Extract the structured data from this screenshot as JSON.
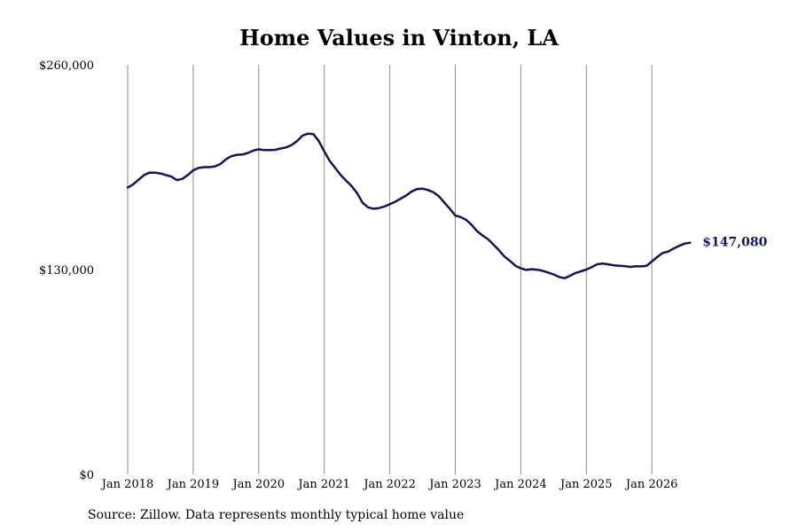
{
  "chart_data": {
    "type": "line",
    "title": "Home Values in Vinton, LA",
    "xlabel": "",
    "ylabel": "",
    "ylim": [
      0,
      260000
    ],
    "y_ticks": [
      {
        "value": 0,
        "label": "$0"
      },
      {
        "value": 130000,
        "label": "$130,000"
      },
      {
        "value": 260000,
        "label": "$260,000"
      }
    ],
    "x_ticks": [
      {
        "value": 2018,
        "label": "Jan 2018"
      },
      {
        "value": 2019,
        "label": "Jan 2019"
      },
      {
        "value": 2020,
        "label": "Jan 2020"
      },
      {
        "value": 2021,
        "label": "Jan 2021"
      },
      {
        "value": 2022,
        "label": "Jan 2022"
      },
      {
        "value": 2023,
        "label": "Jan 2023"
      },
      {
        "value": 2024,
        "label": "Jan 2024"
      },
      {
        "value": 2025,
        "label": "Jan 2025"
      },
      {
        "value": 2026,
        "label": "Jan 2026"
      }
    ],
    "xlim": [
      2018,
      2026.583
    ],
    "grid": "vertical",
    "line_color": "#14145a",
    "series": [
      {
        "name": "",
        "x": [
          2018.0,
          2018.083,
          2018.167,
          2018.25,
          2018.333,
          2018.417,
          2018.5,
          2018.583,
          2018.667,
          2018.75,
          2018.833,
          2018.917,
          2019.0,
          2019.083,
          2019.167,
          2019.25,
          2019.333,
          2019.417,
          2019.5,
          2019.583,
          2019.667,
          2019.75,
          2019.833,
          2019.917,
          2020.0,
          2020.083,
          2020.167,
          2020.25,
          2020.333,
          2020.417,
          2020.5,
          2020.583,
          2020.667,
          2020.75,
          2020.833,
          2020.917,
          2021.0,
          2021.083,
          2021.167,
          2021.25,
          2021.333,
          2021.417,
          2021.5,
          2021.583,
          2021.667,
          2021.75,
          2021.833,
          2021.917,
          2022.0,
          2022.083,
          2022.167,
          2022.25,
          2022.333,
          2022.417,
          2022.5,
          2022.583,
          2022.667,
          2022.75,
          2022.833,
          2022.917,
          2023.0,
          2023.083,
          2023.167,
          2023.25,
          2023.333,
          2023.417,
          2023.5,
          2023.583,
          2023.667,
          2023.75,
          2023.833,
          2023.917,
          2024.0,
          2024.083,
          2024.167,
          2024.25,
          2024.333,
          2024.417,
          2024.5,
          2024.583,
          2024.667,
          2024.75,
          2024.833,
          2024.917,
          2025.0,
          2025.083,
          2025.167,
          2025.25,
          2025.333,
          2025.417,
          2025.5,
          2025.583,
          2025.667,
          2025.75,
          2025.833,
          2025.917,
          2026.0,
          2026.083,
          2026.167,
          2026.25,
          2026.333,
          2026.417,
          2026.5,
          2026.583
        ],
        "y": [
          182000,
          184000,
          187000,
          190000,
          191500,
          191500,
          191000,
          190000,
          189000,
          186800,
          187500,
          190000,
          193000,
          194500,
          195000,
          195000,
          195500,
          197000,
          200000,
          202000,
          202800,
          203000,
          204000,
          205500,
          206300,
          205800,
          205800,
          206000,
          206800,
          207500,
          209000,
          211500,
          215000,
          216300,
          216000,
          211500,
          205000,
          199000,
          194500,
          190000,
          186500,
          183000,
          178500,
          172500,
          169500,
          168600,
          169000,
          170000,
          171500,
          173000,
          175000,
          177000,
          179500,
          181100,
          181300,
          180500,
          179000,
          176500,
          172500,
          168500,
          164300,
          163300,
          161500,
          158300,
          154300,
          151600,
          149200,
          145800,
          142200,
          138300,
          135500,
          132400,
          130800,
          129800,
          130200,
          129900,
          129200,
          128100,
          126900,
          125300,
          124500,
          126000,
          127800,
          128900,
          130000,
          131600,
          133400,
          133800,
          133300,
          132700,
          132400,
          132200,
          131700,
          132000,
          132000,
          132300,
          135100,
          138000,
          140500,
          141400,
          143400,
          145000,
          146500,
          147080
        ]
      }
    ],
    "end_label": "$147,080"
  },
  "footer": {
    "source": "Source: Zillow. Data represents monthly typical home value"
  }
}
